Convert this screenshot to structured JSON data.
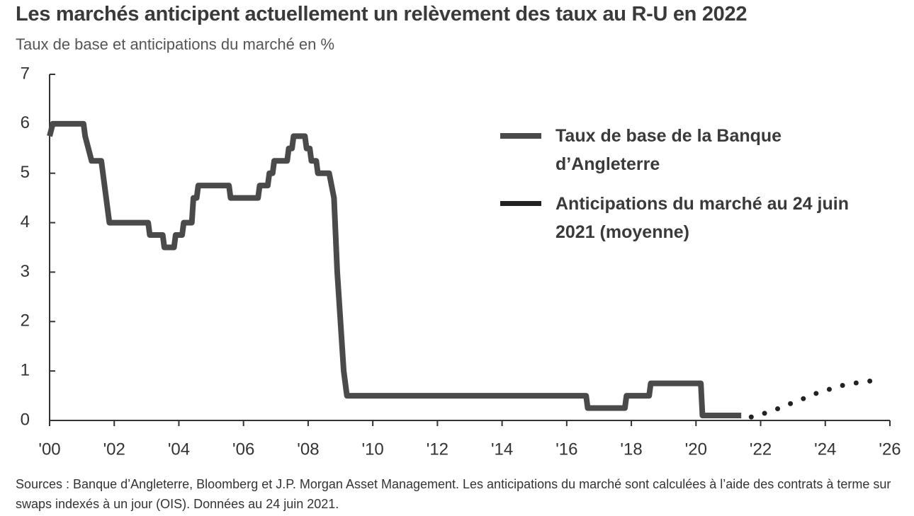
{
  "chart_data": {
    "type": "line",
    "title": "Les marchés anticipent actuellement un relèvement des taux au R-U en 2022",
    "subtitle": "Taux de base et anticipations du marché en %",
    "note": "Sources : Banque d’Angleterre, Bloomberg et J.P. Morgan Asset Management. Les anticipations du marché sont calculées à l’aide des contrats à terme sur swaps indexés à un jour (OIS). Données au 24 juin 2021.",
    "xlim": [
      2000,
      2026
    ],
    "ylim": [
      0,
      7
    ],
    "yticks": [
      0,
      1,
      2,
      3,
      4,
      5,
      6,
      7
    ],
    "xticks": [
      {
        "value": 2000,
        "label": "'00"
      },
      {
        "value": 2002,
        "label": "'02"
      },
      {
        "value": 2004,
        "label": "'04"
      },
      {
        "value": 2006,
        "label": "'06"
      },
      {
        "value": 2008,
        "label": "'08"
      },
      {
        "value": 2010,
        "label": "'10"
      },
      {
        "value": 2012,
        "label": "'12"
      },
      {
        "value": 2014,
        "label": "'14"
      },
      {
        "value": 2016,
        "label": "'16"
      },
      {
        "value": 2018,
        "label": "'18"
      },
      {
        "value": 2020,
        "label": "'20"
      },
      {
        "value": 2022,
        "label": "'22"
      },
      {
        "value": 2024,
        "label": "'24"
      },
      {
        "value": 2026,
        "label": "'26"
      }
    ],
    "series": [
      {
        "name": "Taux de base de la Banque d’Angleterre",
        "color": "#4a4a4a",
        "style": "solid",
        "x": [
          2000.0,
          2000.1,
          2001.05,
          2001.1,
          2001.2,
          2001.3,
          2001.6,
          2001.75,
          2001.85,
          2003.05,
          2003.1,
          2003.5,
          2003.55,
          2003.85,
          2003.9,
          2004.1,
          2004.15,
          2004.4,
          2004.45,
          2004.55,
          2004.6,
          2005.55,
          2005.6,
          2006.45,
          2006.5,
          2006.75,
          2006.8,
          2006.9,
          2006.95,
          2007.35,
          2007.4,
          2007.5,
          2007.55,
          2007.9,
          2007.95,
          2008.05,
          2008.1,
          2008.25,
          2008.3,
          2008.65,
          2008.8,
          2008.9,
          2009.0,
          2009.1,
          2009.2,
          2016.6,
          2016.65,
          2017.8,
          2017.85,
          2018.55,
          2018.6,
          2020.15,
          2020.2,
          2021.4
        ],
        "values": [
          5.75,
          6.0,
          6.0,
          5.75,
          5.5,
          5.25,
          5.25,
          4.5,
          4.0,
          4.0,
          3.75,
          3.75,
          3.5,
          3.5,
          3.75,
          3.75,
          4.0,
          4.0,
          4.5,
          4.5,
          4.75,
          4.75,
          4.5,
          4.5,
          4.75,
          4.75,
          5.0,
          5.0,
          5.25,
          5.25,
          5.5,
          5.5,
          5.75,
          5.75,
          5.5,
          5.5,
          5.25,
          5.25,
          5.0,
          5.0,
          4.5,
          3.0,
          2.0,
          1.0,
          0.5,
          0.5,
          0.25,
          0.25,
          0.5,
          0.5,
          0.75,
          0.75,
          0.1,
          0.1
        ]
      },
      {
        "name": "Anticipations du marché au 24 juin 2021 (moyenne)",
        "color": "#222222",
        "style": "dotted",
        "x": [
          2021.71,
          2022.15,
          2022.59,
          2022.96,
          2023.36,
          2023.73,
          2024.08,
          2024.47,
          2024.85,
          2025.22,
          2025.72
        ],
        "values": [
          0.07,
          0.15,
          0.25,
          0.35,
          0.45,
          0.55,
          0.62,
          0.7,
          0.75,
          0.78,
          0.83
        ]
      }
    ]
  }
}
